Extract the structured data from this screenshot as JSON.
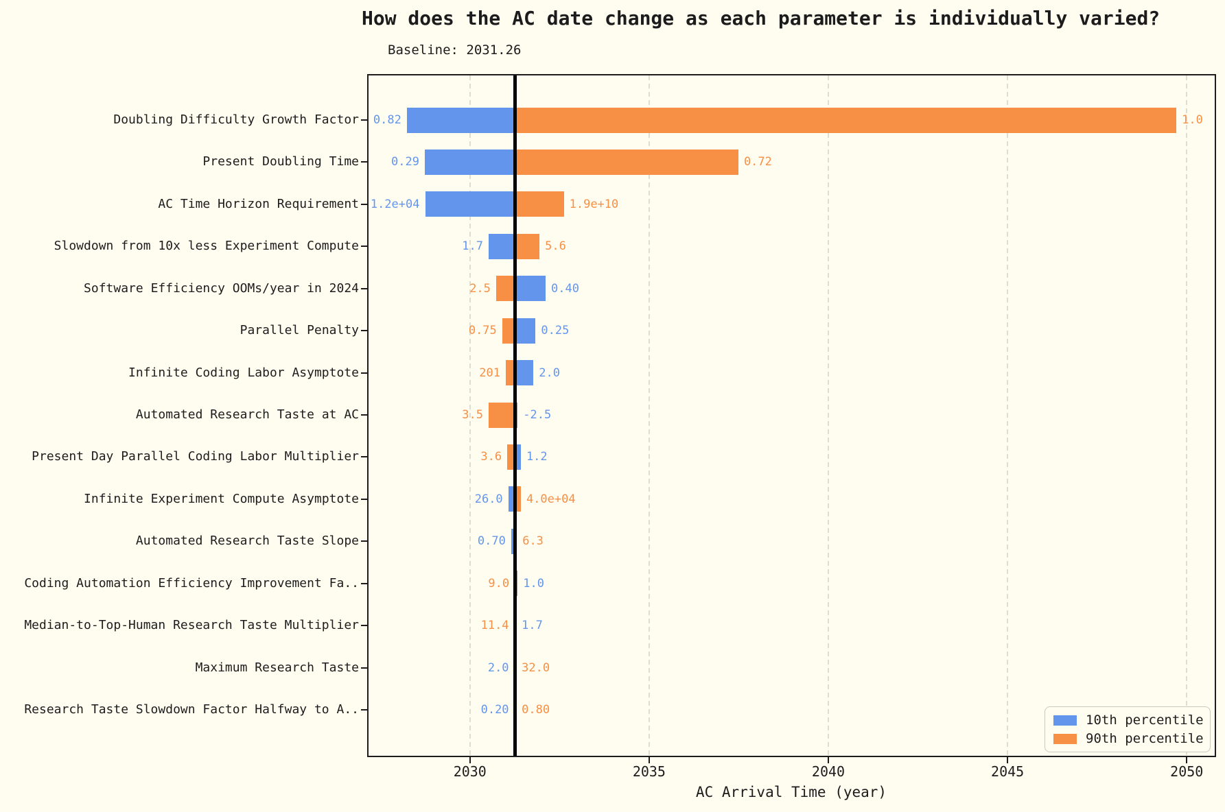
{
  "title": "How does the AC date change as each parameter is individually varied?",
  "subtitle": "Baseline: 2031.26",
  "colors": {
    "p10": "#6495ed",
    "p90": "#f78f45",
    "background": "#fffdf0",
    "baseline_line": "#000000",
    "grid": "#ddddd2",
    "spine": "#1c1c1c"
  },
  "legend": {
    "items": [
      {
        "key": "p10",
        "label": "10th percentile"
      },
      {
        "key": "p90",
        "label": "90th percentile"
      }
    ]
  },
  "chart_data": {
    "type": "bar",
    "orientation": "horizontal",
    "subtype": "tornado-sensitivity",
    "title": "How does the AC date change as each parameter is individually varied?",
    "annotation": "Baseline: 2031.26",
    "baseline": 2031.26,
    "xlabel": "AC Arrival Time (year)",
    "ylabel": "",
    "xlim": [
      2027.17,
      2050.78
    ],
    "xticks": [
      2030,
      2035,
      2040,
      2045,
      2050
    ],
    "xtick_labels": [
      "2030",
      "2035",
      "2040",
      "2045",
      "2050"
    ],
    "grid": "vertical-dashed",
    "legend_position": "lower right",
    "series_note": "Each row: AC arrival year when the parameter is set to its 10th / 90th percentile value; bar drawn from baseline 2031.26 to that year. Value labels show the parameter percentile values.",
    "rows": [
      {
        "param": "Doubling Difficulty Growth Factor",
        "p10": {
          "value": "0.82",
          "year": 2028.24
        },
        "p90": {
          "value": "1.0",
          "year": 2049.71
        }
      },
      {
        "param": "Present Doubling Time",
        "p10": {
          "value": "0.29",
          "year": 2028.74
        },
        "p90": {
          "value": "0.72",
          "year": 2037.49
        }
      },
      {
        "param": "AC Time Horizon Requirement",
        "p10": {
          "value": "1.2e+04",
          "year": 2028.75
        },
        "p90": {
          "value": "1.9e+10",
          "year": 2032.62
        }
      },
      {
        "param": "Slowdown from 10x less Experiment Compute",
        "p10": {
          "value": "1.7",
          "year": 2030.52
        },
        "p90": {
          "value": "5.6",
          "year": 2031.94
        }
      },
      {
        "param": "Software Efficiency OOMs/year in 2024",
        "p10": {
          "value": "0.40",
          "year": 2032.11
        },
        "p90": {
          "value": "2.5",
          "year": 2030.73
        }
      },
      {
        "param": "Parallel Penalty",
        "p10": {
          "value": "0.25",
          "year": 2031.83
        },
        "p90": {
          "value": "0.75",
          "year": 2030.9
        }
      },
      {
        "param": "Infinite Coding Labor Asymptote",
        "p10": {
          "value": "2.0",
          "year": 2031.77
        },
        "p90": {
          "value": "201",
          "year": 2031.0
        }
      },
      {
        "param": "Automated Research Taste at AC",
        "p10": {
          "value": "-2.5",
          "year": 2031.33
        },
        "p90": {
          "value": "3.5",
          "year": 2030.52
        }
      },
      {
        "param": "Present Day Parallel Coding Labor Multiplier",
        "p10": {
          "value": "1.2",
          "year": 2031.42
        },
        "p90": {
          "value": "3.6",
          "year": 2031.04
        }
      },
      {
        "param": "Infinite Experiment Compute Asymptote",
        "p10": {
          "value": "26.0",
          "year": 2031.07
        },
        "p90": {
          "value": "4.0e+04",
          "year": 2031.42
        }
      },
      {
        "param": "Automated Research Taste Slope",
        "p10": {
          "value": "0.70",
          "year": 2031.15
        },
        "p90": {
          "value": "6.3",
          "year": 2031.31
        }
      },
      {
        "param": "Coding Automation Efficiency Improvement Fa..",
        "p10": {
          "value": "1.0",
          "year": 2031.33
        },
        "p90": {
          "value": "9.0",
          "year": 2031.25
        }
      },
      {
        "param": "Median-to-Top-Human Research Taste Multiplier",
        "p10": {
          "value": "1.7",
          "year": 2031.29
        },
        "p90": {
          "value": "11.4",
          "year": 2031.24
        }
      },
      {
        "param": "Maximum Research Taste",
        "p10": {
          "value": "2.0",
          "year": 2031.24
        },
        "p90": {
          "value": "32.0",
          "year": 2031.29
        }
      },
      {
        "param": "Research Taste Slowdown Factor Halfway to A..",
        "p10": {
          "value": "0.20",
          "year": 2031.24
        },
        "p90": {
          "value": "0.80",
          "year": 2031.29
        }
      }
    ]
  }
}
